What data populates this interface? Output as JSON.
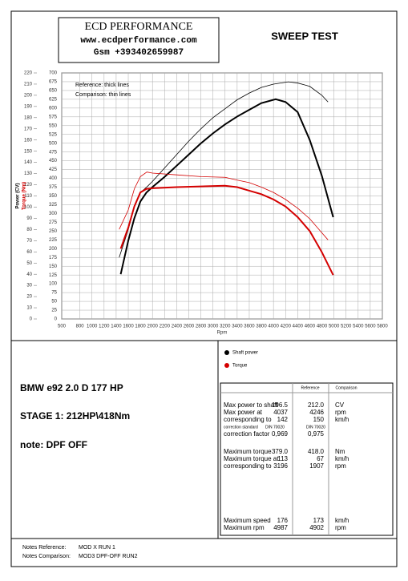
{
  "header": {
    "company": "ECD PERFORMANCE",
    "website": "www.ecdperformance.com",
    "phone": "Gsm +393402659987",
    "title": "SWEEP TEST"
  },
  "chart_data": {
    "type": "line",
    "y_label": "Power (CV)",
    "y2_label": "Torque (Nm)",
    "x_label": "Rpm",
    "legend_runs": [
      "Reference: thick lines",
      "Comparison: thin lines"
    ],
    "legend_quantities": [
      {
        "name": "Shaft power",
        "color": "#000000"
      },
      {
        "name": "Torque",
        "color": "#d40000"
      }
    ],
    "xlim": [
      500,
      5800
    ],
    "xticks": [
      500,
      800,
      1000,
      1200,
      1400,
      1600,
      1800,
      2000,
      2200,
      2400,
      2600,
      2800,
      3000,
      3200,
      3400,
      3600,
      3800,
      4000,
      4200,
      4400,
      4600,
      4800,
      5000,
      5200,
      5400,
      5600,
      5800
    ],
    "ylim": [
      0,
      220
    ],
    "yticks": [
      0,
      10,
      20,
      30,
      40,
      50,
      60,
      70,
      80,
      90,
      100,
      110,
      120,
      130,
      140,
      150,
      160,
      170,
      180,
      190,
      200,
      210,
      220
    ],
    "y2lim": [
      0,
      700
    ],
    "y2ticks": [
      0,
      25,
      50,
      75,
      100,
      125,
      150,
      175,
      200,
      225,
      250,
      275,
      300,
      325,
      350,
      375,
      400,
      425,
      450,
      475,
      500,
      525,
      550,
      575,
      600,
      625,
      650,
      675,
      700
    ],
    "grid": true,
    "series": [
      {
        "color": "#000000",
        "width": 2,
        "axis": "y",
        "x": [
          1475,
          1600,
          1700,
          1800,
          1900,
          2000,
          2200,
          2400,
          2600,
          2800,
          3000,
          3200,
          3400,
          3600,
          3800,
          4037,
          4200,
          4400,
          4600,
          4800,
          4987
        ],
        "values": [
          40,
          70,
          90,
          105,
          113,
          118,
          127,
          137,
          147,
          157,
          166,
          174,
          181,
          187,
          193,
          196.5,
          194,
          185,
          160,
          128,
          91
        ]
      },
      {
        "color": "#000000",
        "width": 0.8,
        "axis": "y",
        "x": [
          1450,
          1600,
          1700,
          1800,
          1907,
          2000,
          2200,
          2400,
          2600,
          2800,
          3000,
          3200,
          3400,
          3600,
          3800,
          4000,
          4246,
          4400,
          4600,
          4800,
          4902
        ],
        "values": [
          55,
          80,
          100,
          113,
          118,
          123,
          135,
          147,
          159,
          170,
          180,
          188,
          196,
          202,
          207,
          210,
          212,
          211,
          208,
          200,
          194
        ]
      },
      {
        "color": "#d40000",
        "width": 2,
        "axis": "y2",
        "x": [
          1475,
          1600,
          1700,
          1800,
          1900,
          2000,
          2400,
          2800,
          3196,
          3400,
          3600,
          3800,
          4000,
          4200,
          4400,
          4600,
          4800,
          4987
        ],
        "values": [
          200,
          260,
          320,
          360,
          370,
          372,
          375,
          377,
          379,
          375,
          365,
          355,
          340,
          320,
          290,
          250,
          190,
          125
        ]
      },
      {
        "color": "#d40000",
        "width": 0.8,
        "axis": "y2",
        "x": [
          1450,
          1600,
          1700,
          1800,
          1907,
          2000,
          2400,
          2800,
          3200,
          3400,
          3600,
          3800,
          4000,
          4200,
          4400,
          4600,
          4800,
          4902
        ],
        "values": [
          255,
          310,
          370,
          405,
          418,
          415,
          410,
          405,
          403,
          395,
          388,
          375,
          360,
          340,
          315,
          285,
          245,
          225
        ]
      }
    ]
  },
  "vehicle": {
    "model": "BMW e92 2.0 D 177 HP",
    "stage": "STAGE 1: 212HP\\418Nm",
    "note": "note: DPF OFF"
  },
  "results": {
    "columns": [
      "Reference",
      "Comparison"
    ],
    "rows": [
      [
        "Max power to shaft",
        "196.5",
        "212.0",
        "CV"
      ],
      [
        "Max power at",
        "4037",
        "4246",
        "rpm"
      ],
      [
        "corresponding to",
        "142",
        "150",
        "km/h"
      ],
      [
        "correction standard",
        "DIN 70020",
        "DIN 70020",
        null
      ],
      [
        "correction factor",
        "0,969",
        "0,975",
        null
      ],
      [
        "Maximum torque",
        "379.0",
        "418.0",
        "Nm"
      ],
      [
        "Maximum torque at",
        "113",
        "67",
        "km/h"
      ],
      [
        "corresponding to",
        "3196",
        "1907",
        "rpm"
      ],
      [
        "Maximum speed",
        "176",
        "173",
        "km/h"
      ],
      [
        "Maximum rpm",
        "4987",
        "4902",
        "rpm"
      ]
    ]
  },
  "notes": [
    [
      "Notes Reference:",
      "MOD X RUN 1"
    ],
    [
      "Notes Comparison:",
      "MOD3 DPF-OFF RUN2"
    ]
  ]
}
